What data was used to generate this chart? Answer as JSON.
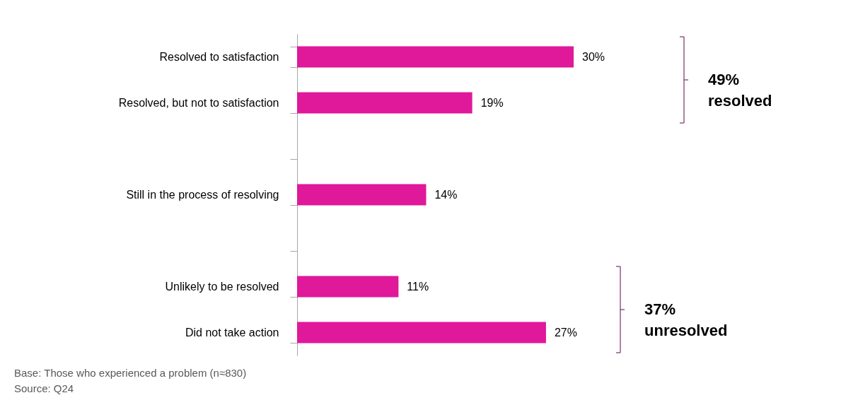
{
  "chart_data": {
    "type": "bar",
    "orientation": "horizontal",
    "categories": [
      "Resolved to satisfaction",
      "Resolved, but not to satisfaction",
      null,
      "Still in the process of resolving",
      null,
      "Unlikely to be resolved",
      "Did not take action"
    ],
    "values": [
      30,
      19,
      null,
      14,
      null,
      11,
      27
    ],
    "value_labels": [
      "30%",
      "19%",
      null,
      "14%",
      null,
      "11%",
      "27%"
    ],
    "color": "#e0189a",
    "tick_labels": "y",
    "annotations": [
      "49% resolved",
      "37% unresolved",
      "Base: Those who experienced a problem (n≈830)",
      "Source: Q24"
    ]
  }
}
